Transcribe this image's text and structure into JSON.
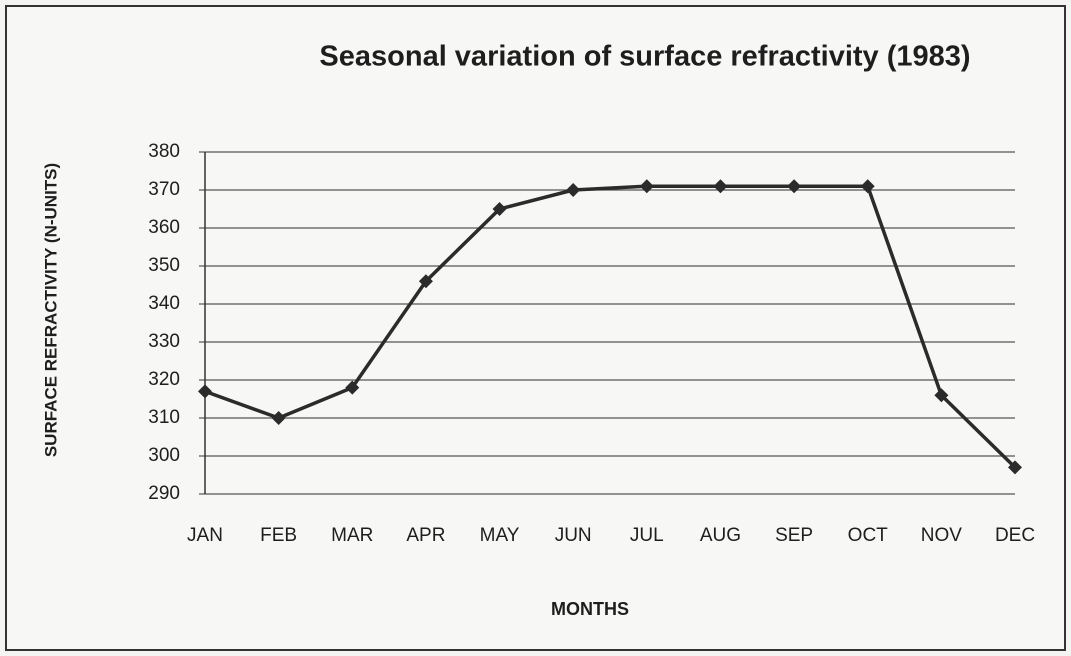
{
  "chart_data": {
    "type": "line",
    "title": "Seasonal variation of surface refractivity (1983)",
    "x_label": "MONTHS",
    "y_label": "SURFACE REFRACTIVITY (N-UNITS)",
    "categories": [
      "JAN",
      "FEB",
      "MAR",
      "APR",
      "MAY",
      "JUN",
      "JUL",
      "AUG",
      "SEP",
      "OCT",
      "NOV",
      "DEC"
    ],
    "values": [
      317,
      310,
      318,
      346,
      365,
      370,
      371,
      371,
      371,
      371,
      316,
      297
    ],
    "color": "#2b2b2b",
    "ylim": [
      290,
      380
    ],
    "yticks": [
      290,
      300,
      310,
      320,
      330,
      340,
      350,
      360,
      370,
      380
    ],
    "grid": true
  }
}
